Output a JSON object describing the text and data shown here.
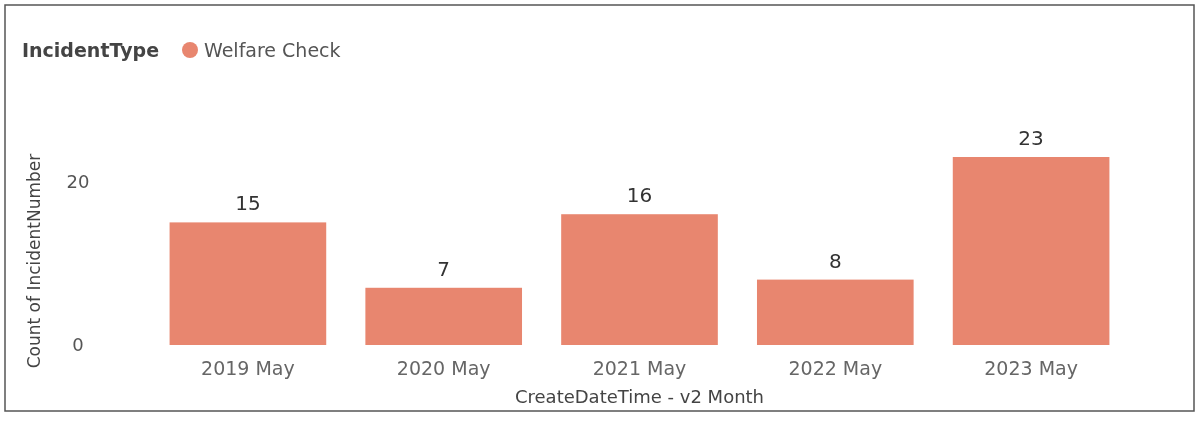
{
  "chart_data": {
    "type": "bar",
    "legend_title": "IncidentType",
    "xlabel": "CreateDateTime - v2 Month",
    "ylabel": "Count of IncidentNumber",
    "categories": [
      "2019 May",
      "2020 May",
      "2021 May",
      "2022 May",
      "2023 May"
    ],
    "series": [
      {
        "name": "Welfare Check",
        "color": "#e8866f",
        "values": [
          15,
          7,
          16,
          8,
          23
        ]
      }
    ],
    "ylim": [
      0,
      23
    ],
    "yticks": [
      0,
      20
    ],
    "data_labels": true,
    "legend": "top left",
    "grid": false
  }
}
